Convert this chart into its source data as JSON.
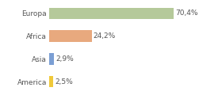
{
  "categories": [
    "America",
    "Asia",
    "Africa",
    "Europa"
  ],
  "values": [
    2.5,
    2.9,
    24.2,
    70.4
  ],
  "bar_colors": [
    "#f0c93a",
    "#7b9fd4",
    "#e8a97e",
    "#b5c99a"
  ],
  "labels": [
    "2,5%",
    "2,9%",
    "24,2%",
    "70,4%"
  ],
  "background_color": "#ffffff",
  "xlim": [
    0,
    95
  ],
  "bar_height": 0.5,
  "label_fontsize": 6.5,
  "tick_fontsize": 6.5,
  "label_color": "#555555",
  "tick_color": "#555555"
}
